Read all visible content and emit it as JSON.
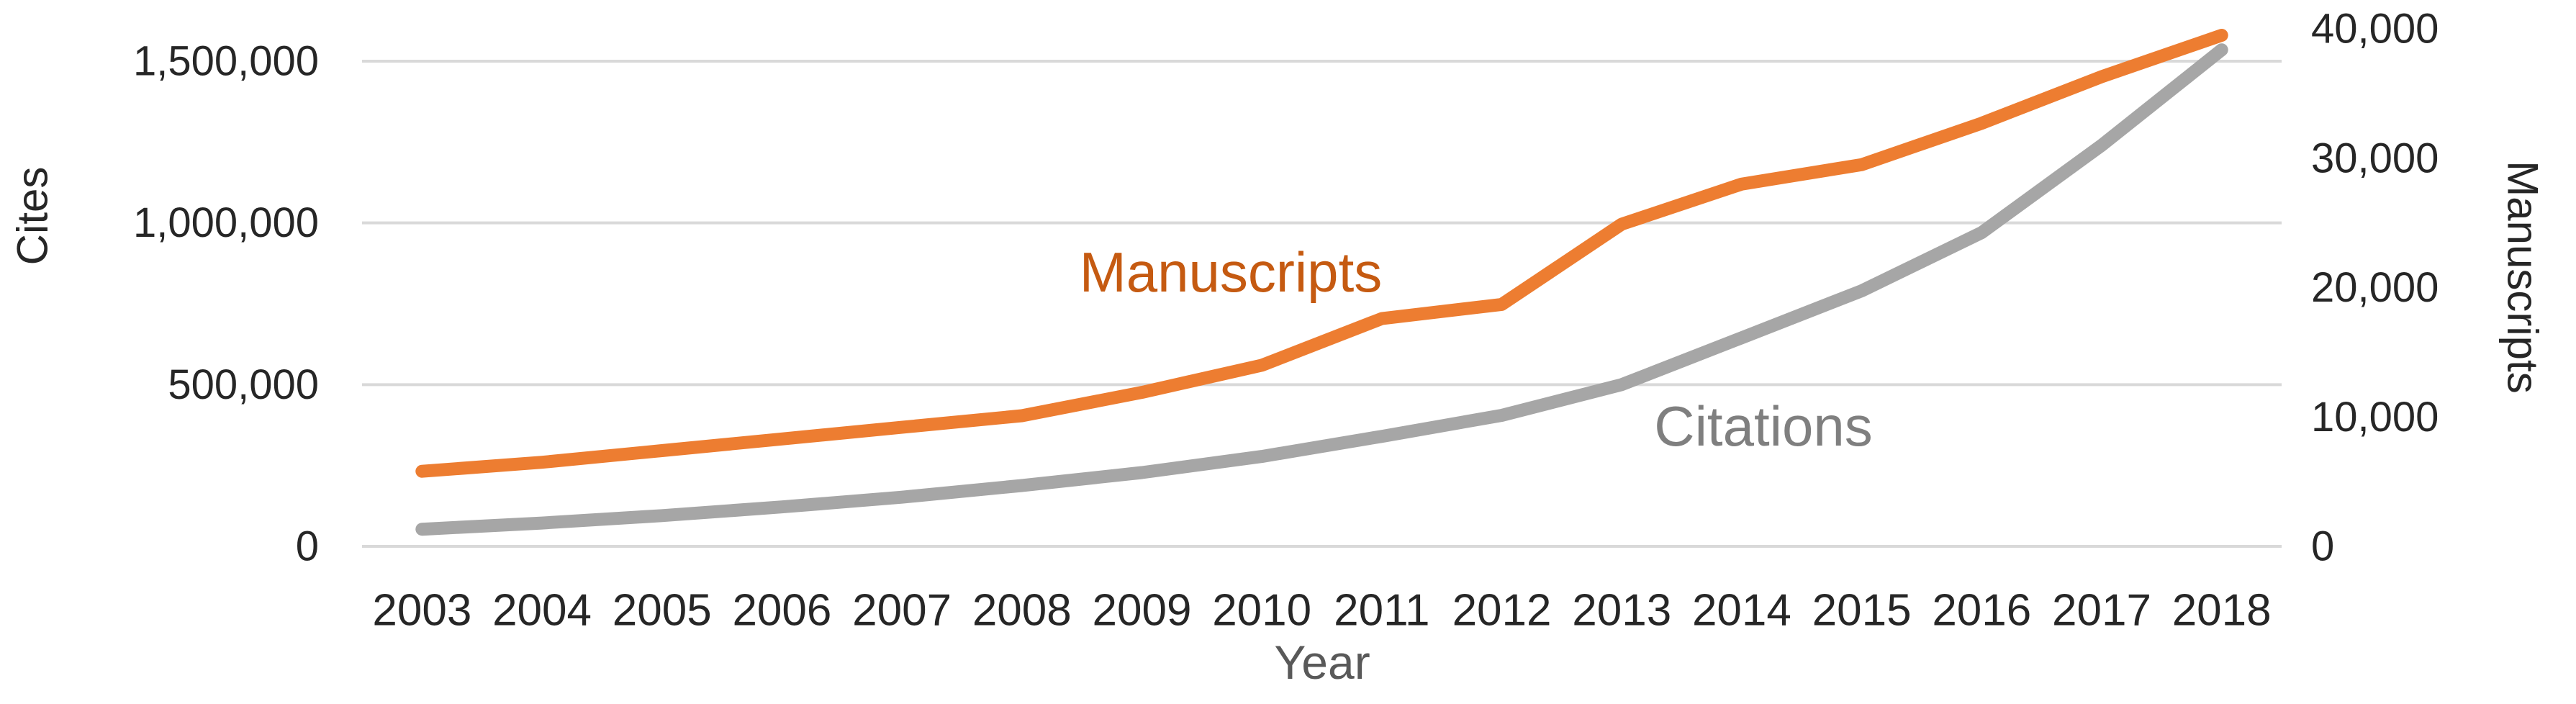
{
  "chart_data": {
    "type": "line",
    "title": "",
    "xlabel": "Year",
    "ylabel_left": "Cites",
    "ylabel_right": "Manuscripts",
    "categories": [
      "2003",
      "2004",
      "2005",
      "2006",
      "2007",
      "2008",
      "2009",
      "2010",
      "2011",
      "2012",
      "2013",
      "2014",
      "2015",
      "2016",
      "2017",
      "2018"
    ],
    "series": [
      {
        "name": "Manuscripts",
        "axis": "right",
        "color": "#ED7D31",
        "label_color": "#C55A11",
        "values": [
          5800,
          6500,
          7400,
          8300,
          9200,
          10100,
          11900,
          14000,
          17600,
          18700,
          24900,
          28000,
          29500,
          32700,
          36300,
          39500
        ]
      },
      {
        "name": "Citations",
        "axis": "left",
        "color": "#A6A6A6",
        "label_color": "#7F7F7F",
        "values": [
          53000,
          72000,
          95000,
          122000,
          152000,
          188000,
          228000,
          278000,
          340000,
          405000,
          500000,
          645000,
          790000,
          970000,
          1240000,
          1535000
        ]
      }
    ],
    "left_axis": {
      "tick_labels": [
        "0",
        "500,000",
        "1,000,000",
        "1,500,000"
      ],
      "tick_values": [
        0,
        500000,
        1000000,
        1500000
      ],
      "range": [
        0,
        1600000
      ]
    },
    "right_axis": {
      "tick_labels": [
        "0",
        "10,000",
        "20,000",
        "30,000",
        "40,000"
      ],
      "tick_values": [
        0,
        10000,
        20000,
        30000,
        40000
      ],
      "range": [
        0,
        40000
      ]
    },
    "grid": true,
    "gridline_color": "#D9D9D9",
    "legend_position": "inline-labels",
    "inline_labels": [
      {
        "text": "Manuscripts",
        "series": "Manuscripts"
      },
      {
        "text": "Citations",
        "series": "Citations"
      }
    ]
  }
}
